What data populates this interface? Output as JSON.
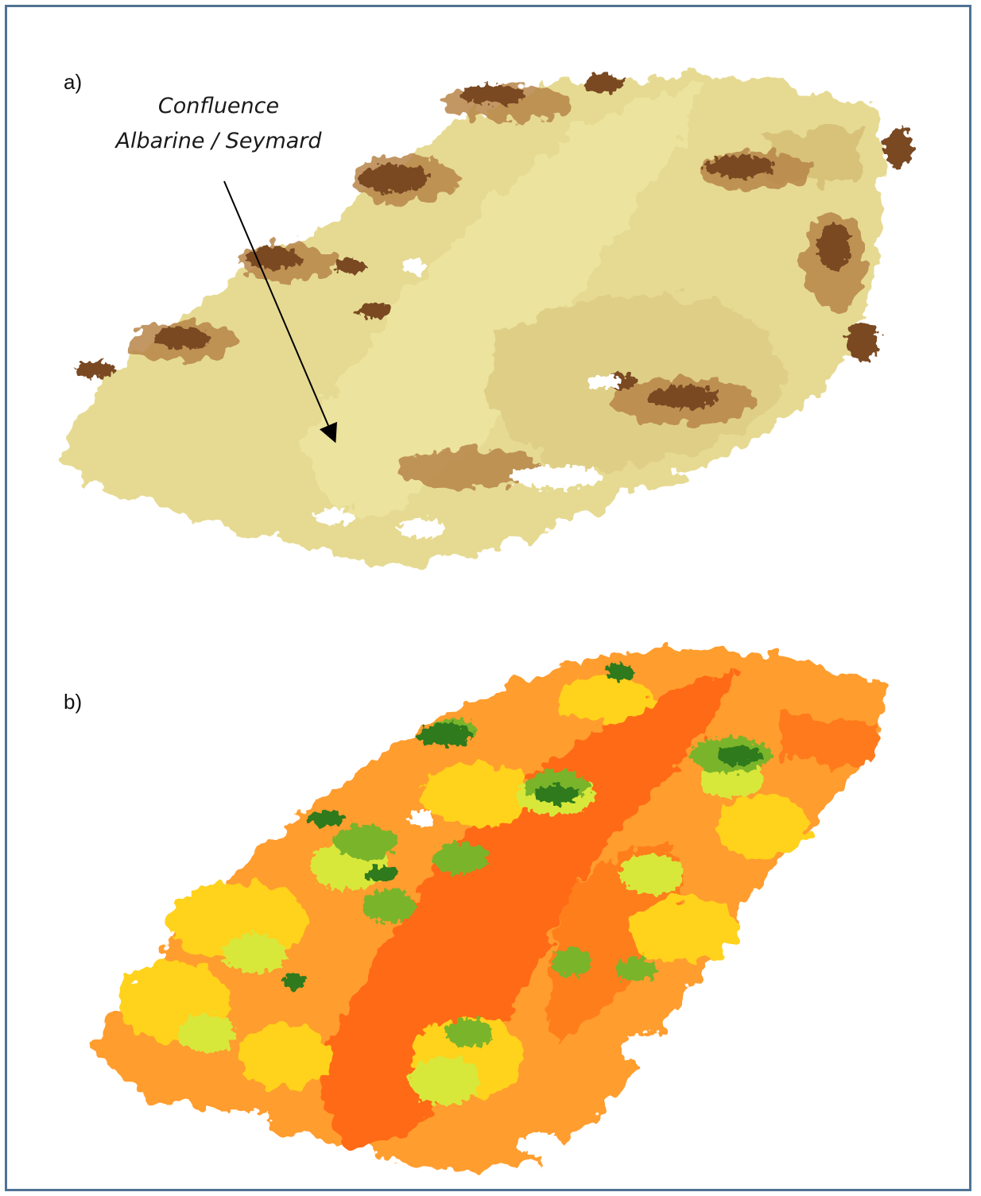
{
  "panels": [
    {
      "label": "a)",
      "annotation": [
        "Confluence",
        "Albarine / Seymard"
      ],
      "colors": {
        "ground": "#e8df9a",
        "ground_shade": "#d9c77c",
        "terrain_light": "#d8b45c",
        "vegetation": "#8a5a2a",
        "vegetation_dark": "#6b3a1a"
      }
    },
    {
      "label": "b)",
      "colors": {
        "channel": "#ff6a12",
        "floodplain": "#ff9a2a",
        "mid": "#ffd21a",
        "low_veg": "#d7e83a",
        "canopy": "#7ab42a",
        "canopy_dark": "#2f7a1e"
      }
    }
  ],
  "frame": {
    "border_color": "#4f7393"
  }
}
